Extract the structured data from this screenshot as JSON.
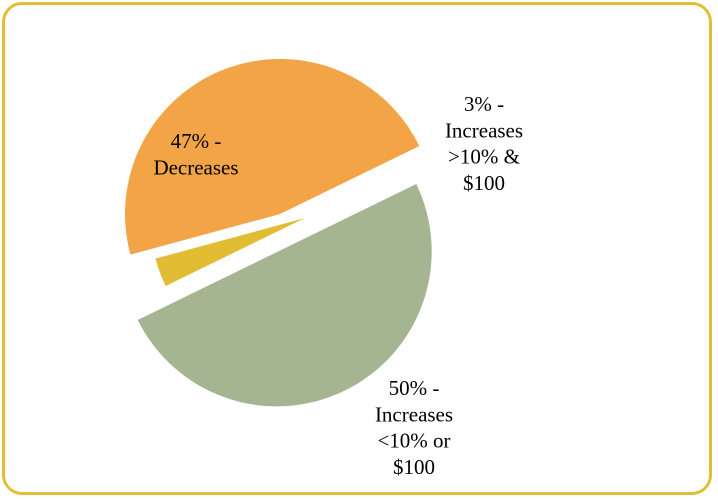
{
  "chart_data": {
    "type": "pie",
    "exploded": true,
    "slices": [
      {
        "category": "Increases <10% or $100",
        "value": 50,
        "color": "#A5B592",
        "label_lines": [
          "50% -",
          "Increases",
          "<10% or",
          "$100"
        ]
      },
      {
        "category": "Decreases",
        "value": 47,
        "color": "#F2A446",
        "label_lines": [
          "47% -",
          "Decreases"
        ]
      },
      {
        "category": "Increases >10% & $100",
        "value": 3,
        "color": "#E2BC33",
        "label_lines": [
          "3% -",
          "Increases",
          ">10% &",
          "$100"
        ]
      }
    ],
    "border_color": "#E3BE35"
  }
}
